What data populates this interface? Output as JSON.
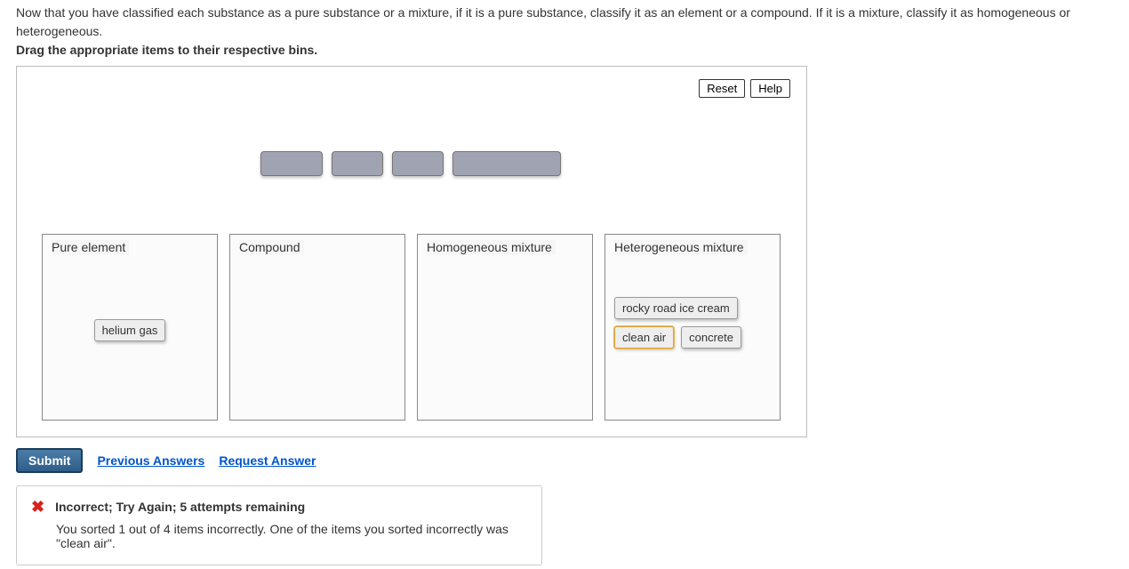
{
  "intro_text": "Now that you have classified each substance as a pure substance or a mixture, if it is a pure substance, classify it as an element or a compound. If it is a mixture, classify it as homogeneous or heterogeneous.",
  "instructions_text": "Drag the appropriate items to their respective bins.",
  "toolbar": {
    "reset_label": "Reset",
    "help_label": "Help"
  },
  "ghost_widths": [
    70,
    58,
    58,
    122
  ],
  "bins": {
    "pure_element": {
      "label": "Pure element"
    },
    "compound": {
      "label": "Compound"
    },
    "homogeneous": {
      "label": "Homogeneous mixture"
    },
    "heterogeneous": {
      "label": "Heterogeneous mixture"
    }
  },
  "chips": {
    "helium": {
      "label": "helium gas",
      "highlight": false
    },
    "rocky": {
      "label": "rocky road ice cream",
      "highlight": false
    },
    "clean_air": {
      "label": "clean air",
      "highlight": true
    },
    "concrete": {
      "label": "concrete",
      "highlight": false
    }
  },
  "actions": {
    "submit_label": "Submit",
    "previous_answers_label": "Previous Answers",
    "request_answer_label": "Request Answer"
  },
  "feedback": {
    "title": "Incorrect; Try Again; 5 attempts remaining",
    "detail": "You sorted 1 out of 4 items incorrectly. One of the items you sorted incorrectly was \"clean air\"."
  },
  "colors": {
    "link": "#0055cc",
    "error": "#d9221c",
    "submit_bg": "#36648b",
    "ghost_bg": "#a0a3b1"
  }
}
